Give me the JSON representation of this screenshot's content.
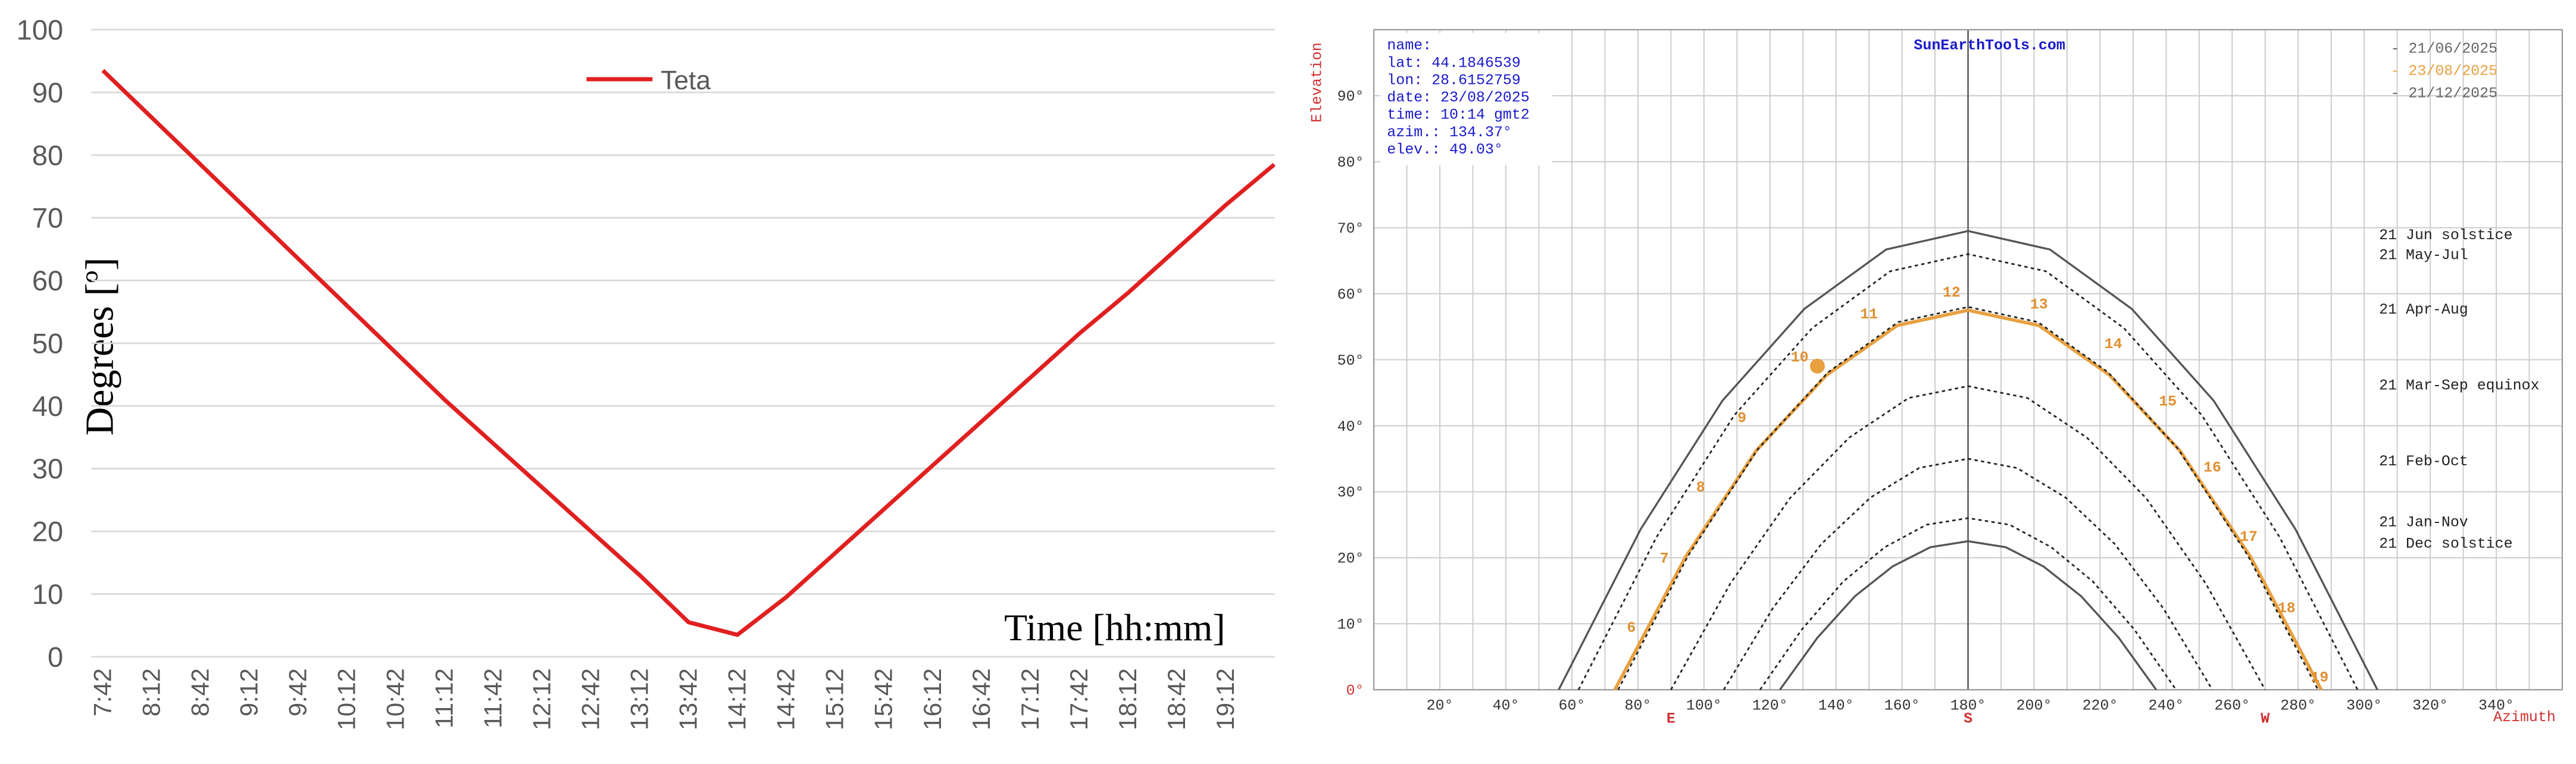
{
  "chart_data": [
    {
      "type": "line",
      "x_label": "Time [hh:mm]",
      "y_label": "Degrees [º]",
      "categories": [
        "7:42",
        "8:12",
        "8:42",
        "9:12",
        "9:42",
        "10:12",
        "10:42",
        "11:12",
        "11:42",
        "12:12",
        "12:42",
        "13:12",
        "13:42",
        "14:12",
        "14:42",
        "15:12",
        "15:42",
        "16:12",
        "16:42",
        "17:12",
        "17:42",
        "18:12",
        "18:42",
        "19:12",
        null
      ],
      "series": [
        {
          "name": "Teta",
          "color": "#e02020",
          "values": [
            93.5,
            86,
            78.5,
            71,
            63.5,
            56,
            48.5,
            41,
            34,
            27,
            20,
            13,
            5.5,
            3.5,
            9.5,
            16.5,
            23.5,
            30.5,
            37.5,
            44.5,
            51.5,
            58,
            65,
            72,
            78.5
          ]
        }
      ],
      "ylim": [
        0,
        100
      ],
      "yticks": [
        0,
        10,
        20,
        30,
        40,
        50,
        60,
        70,
        80,
        90,
        100
      ],
      "grid": true,
      "legend": "top"
    },
    {
      "type": "sunpath",
      "title": "SunEarthTools.com",
      "x_label": "Azimuth",
      "y_label": "Elevation",
      "xlim": [
        0,
        360
      ],
      "ylim": [
        0,
        100
      ],
      "xticks": [
        {
          "value": 20,
          "label": "20°"
        },
        {
          "value": 40,
          "label": "40°"
        },
        {
          "value": 60,
          "label": "60°"
        },
        {
          "value": 80,
          "label": "80°"
        },
        {
          "value": 100,
          "label": "100°"
        },
        {
          "value": 120,
          "label": "120°"
        },
        {
          "value": 140,
          "label": "140°"
        },
        {
          "value": 160,
          "label": "160°"
        },
        {
          "value": 180,
          "label": "180°"
        },
        {
          "value": 200,
          "label": "200°"
        },
        {
          "value": 220,
          "label": "220°"
        },
        {
          "value": 240,
          "label": "240°"
        },
        {
          "value": 260,
          "label": "260°"
        },
        {
          "value": 280,
          "label": "280°"
        },
        {
          "value": 300,
          "label": "300°"
        },
        {
          "value": 320,
          "label": "320°"
        },
        {
          "value": 340,
          "label": "340°"
        }
      ],
      "xminor": [
        10,
        30,
        50,
        70,
        90,
        110,
        130,
        150,
        170,
        190,
        210,
        230,
        250,
        270,
        290,
        310,
        330,
        350
      ],
      "yticks": [
        {
          "value": 0,
          "label": "0°"
        },
        {
          "value": 10,
          "label": "10°"
        },
        {
          "value": 20,
          "label": "20°"
        },
        {
          "value": 30,
          "label": "30°"
        },
        {
          "value": 40,
          "label": "40°"
        },
        {
          "value": 50,
          "label": "50°"
        },
        {
          "value": 60,
          "label": "60°"
        },
        {
          "value": 70,
          "label": "70°"
        },
        {
          "value": 80,
          "label": "80°"
        },
        {
          "value": 90,
          "label": "90°"
        }
      ],
      "direction_labels": [
        {
          "value": 90,
          "label": "E"
        },
        {
          "value": 180,
          "label": "S"
        },
        {
          "value": 270,
          "label": "W"
        }
      ],
      "info": [
        "name:",
        "lat: 44.1846539",
        "lon: 28.6152759",
        "date: 23/08/2025",
        "time: 10:14 gmt2",
        "azim.: 134.37°",
        "elev.: 49.03°"
      ],
      "legend": [
        {
          "label": "- 21/06/2025",
          "color": "#666666"
        },
        {
          "label": "- 23/08/2025",
          "color": "#e8a040"
        },
        {
          "label": "- 21/12/2025",
          "color": "#666666"
        }
      ],
      "series": [
        {
          "name": "21 Jun  solstice",
          "color": "#555555",
          "dash": false,
          "x": [
            56,
            80.8,
            105.6,
            130.4,
            155.2,
            180,
            204.8,
            229.6,
            254.4,
            279.2,
            304
          ],
          "values": [
            0,
            24.3,
            43.8,
            57.7,
            66.7,
            69.5,
            66.7,
            57.7,
            43.8,
            24.3,
            0
          ]
        },
        {
          "name": "21 May-Jul",
          "color": "#222222",
          "dash": true,
          "x": [
            62,
            85.6,
            109.2,
            132.8,
            156.4,
            180,
            203.6,
            227.2,
            250.8,
            274.4,
            298
          ],
          "values": [
            0,
            23.1,
            41.6,
            54.8,
            63.4,
            66,
            63.4,
            54.8,
            41.6,
            23.1,
            0
          ]
        },
        {
          "color": "#e8a040",
          "dash": false,
          "x": [
            73,
            94.4,
            115.8,
            137.2,
            158.6,
            180,
            201.4,
            222.8,
            244.2,
            265.6,
            287
          ],
          "values": [
            0,
            20.1,
            36.2,
            47.7,
            55.2,
            57.5,
            55.2,
            47.7,
            36.2,
            20.1,
            0
          ]
        },
        {
          "name": "21 Apr-Aug",
          "color": "#222222",
          "dash": true,
          "x": [
            74,
            95.2,
            116.4,
            137.6,
            158.8,
            180,
            201.2,
            222.4,
            243.6,
            264.8,
            286
          ],
          "values": [
            0,
            20.3,
            36.5,
            48.1,
            55.7,
            58,
            55.7,
            48.1,
            36.5,
            20.3,
            0
          ]
        },
        {
          "name": "21 Mar-Sep equinox",
          "color": "#222222",
          "dash": true,
          "x": [
            90,
            108,
            126,
            144,
            162,
            180,
            198,
            216,
            234,
            252,
            270
          ],
          "values": [
            0,
            16.1,
            29,
            38.2,
            44.2,
            46,
            44.2,
            38.2,
            29,
            16.1,
            0
          ]
        },
        {
          "name": "21 Feb-Oct",
          "color": "#222222",
          "dash": true,
          "x": [
            106,
            120.8,
            135.6,
            150.4,
            165.2,
            180,
            194.8,
            209.6,
            224.4,
            239.2,
            254
          ],
          "values": [
            0,
            12.3,
            22.1,
            29.1,
            33.6,
            35,
            33.6,
            29.1,
            22.1,
            12.3,
            0
          ]
        },
        {
          "name": "21 Jan-Nov",
          "color": "#222222",
          "dash": true,
          "x": [
            117,
            129.6,
            142.2,
            154.8,
            167.4,
            180,
            192.6,
            205.2,
            217.8,
            230.4,
            243
          ],
          "values": [
            0,
            9.1,
            16.4,
            21.6,
            25,
            26,
            25,
            21.6,
            16.4,
            9.1,
            0
          ]
        },
        {
          "name": "21 Dec  solstice",
          "color": "#555555",
          "dash": false,
          "x": [
            123,
            134.4,
            145.8,
            157.2,
            168.6,
            180,
            191.4,
            202.8,
            214.2,
            225.6,
            237
          ],
          "values": [
            0,
            7.9,
            14.2,
            18.7,
            21.6,
            22.5,
            21.6,
            18.7,
            14.2,
            7.9,
            0
          ]
        }
      ],
      "hour_labels": {
        "color": "#e09030",
        "labels": [
          "6",
          "7",
          "8",
          "9",
          "10",
          "11",
          "12",
          "13",
          "14",
          "15",
          "16",
          "17",
          "18",
          "19"
        ],
        "x": [
          78,
          88,
          99,
          111.5,
          129,
          150,
          175,
          201.5,
          224,
          240.5,
          254,
          265,
          276.5,
          286.5
        ],
        "y": [
          9.5,
          20,
          30.8,
          41.3,
          50.5,
          57,
          60.3,
          58.5,
          52.5,
          43.8,
          33.8,
          23.3,
          12.5,
          2
        ]
      },
      "sun": {
        "x": 134.37,
        "y": 49.03,
        "color": "#e8a040"
      }
    }
  ]
}
